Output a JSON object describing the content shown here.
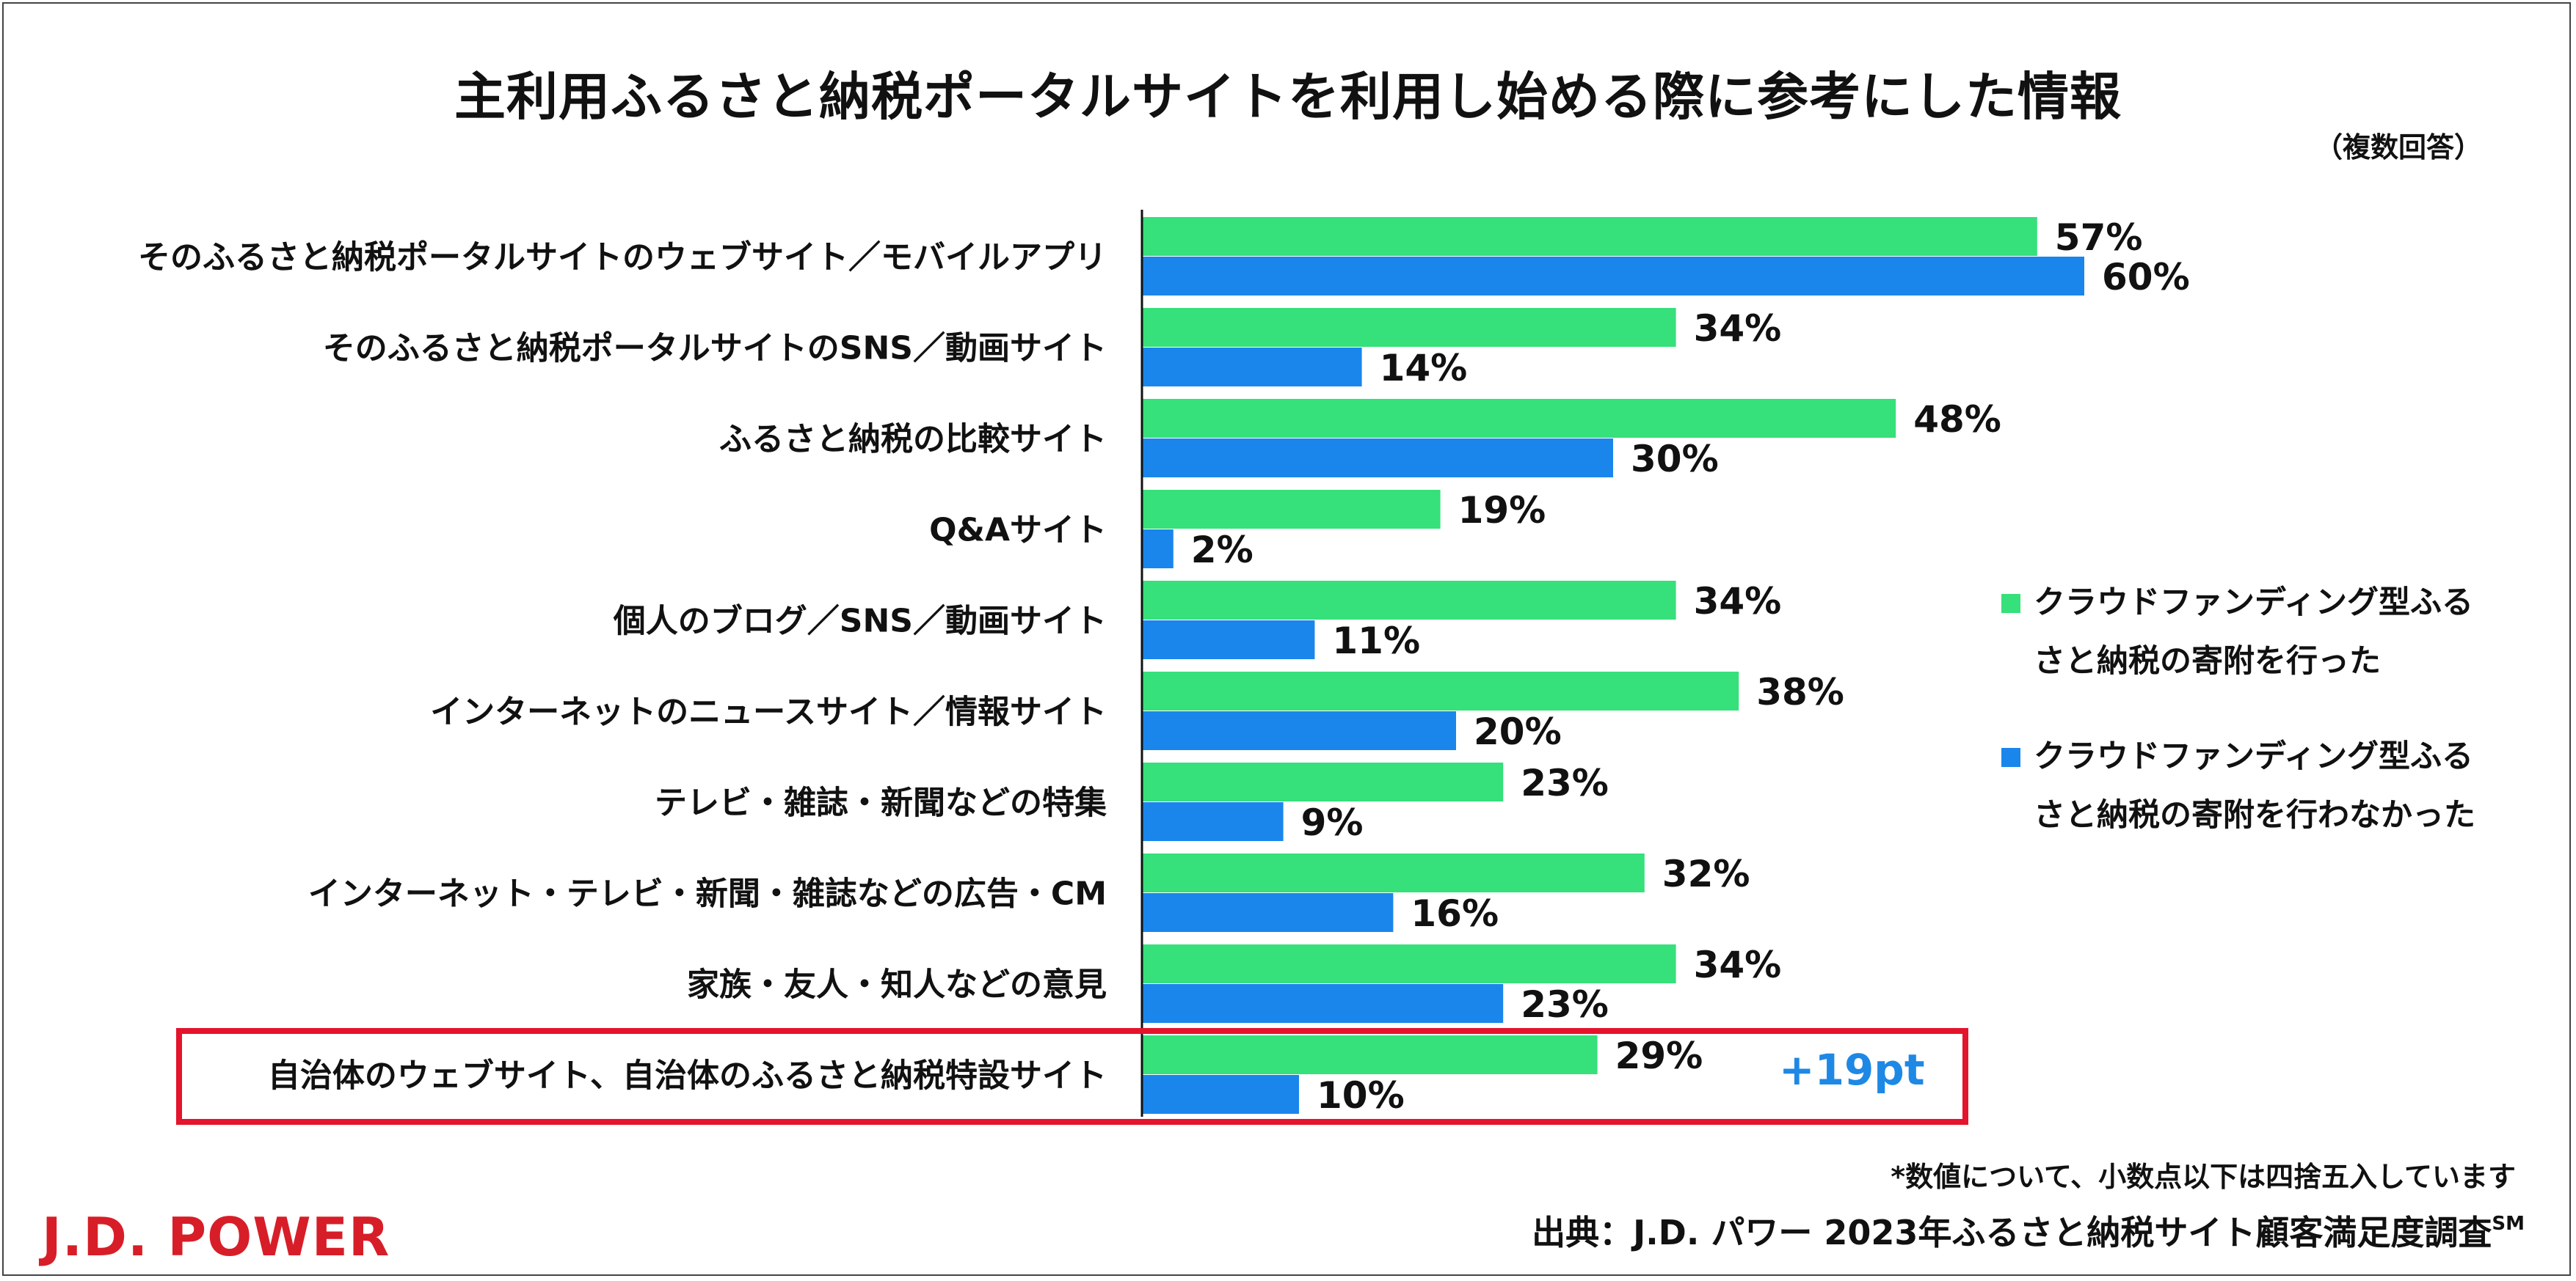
{
  "chart_data": {
    "type": "bar",
    "orientation": "horizontal",
    "title": "主利用ふるさと納税ポータルサイトを利用し始める際に参考にした情報",
    "subtitle": "（複数回答）",
    "categories": [
      "そのふるさと納税ポータルサイトのウェブサイト／モバイルアプリ",
      "そのふるさと納税ポータルサイトのSNS／動画サイト",
      "ふるさと納税の比較サイト",
      "Q&Aサイト",
      "個人のブログ／SNS／動画サイト",
      "インターネットのニュースサイト／情報サイト",
      "テレビ・雑誌・新聞などの特集",
      "インターネット・テレビ・新聞・雑誌などの広告・CM",
      "家族・友人・知人などの意見",
      "自治体のウェブサイト、自治体のふるさと納税特設サイト"
    ],
    "series": [
      {
        "name": "クラウドファンディング型ふるさと納税の寄附を行った",
        "legend_lines": [
          "クラウドファンディング型ふる",
          "さと納税の寄附を行った"
        ],
        "color": "#36e07a",
        "values": [
          57,
          34,
          48,
          19,
          34,
          38,
          23,
          32,
          34,
          29
        ],
        "labels": [
          "57%",
          "34%",
          "48%",
          "19%",
          "34%",
          "38%",
          "23%",
          "32%",
          "34%",
          "29%"
        ]
      },
      {
        "name": "クラウドファンディング型ふるさと納税の寄附を行わなかった",
        "legend_lines": [
          "クラウドファンディング型ふる",
          "さと納税の寄附を行わなかった"
        ],
        "color": "#1a86ec",
        "values": [
          60,
          14,
          30,
          2,
          11,
          20,
          9,
          16,
          23,
          10
        ],
        "labels": [
          "60%",
          "14%",
          "30%",
          "2%",
          "11%",
          "20%",
          "9%",
          "16%",
          "23%",
          "10%"
        ]
      }
    ],
    "xlim": [
      0,
      100
    ],
    "grid": false,
    "legend_position": "right",
    "highlight": {
      "category": "自治体のウェブサイト、自治体のふるさと納税特設サイト",
      "annotation": "+19pt",
      "color": "#e3142b"
    }
  },
  "footnote": "*数値について、小数点以下は四捨五入しています",
  "source": {
    "text": "出典：J.D. パワー 2023年ふるさと納税サイト顧客満足度調査",
    "superscript": "SM"
  },
  "logo": "J.D. POWER",
  "colors": {
    "logo": "#d71e28",
    "annotation_text": "#1e88e5"
  }
}
